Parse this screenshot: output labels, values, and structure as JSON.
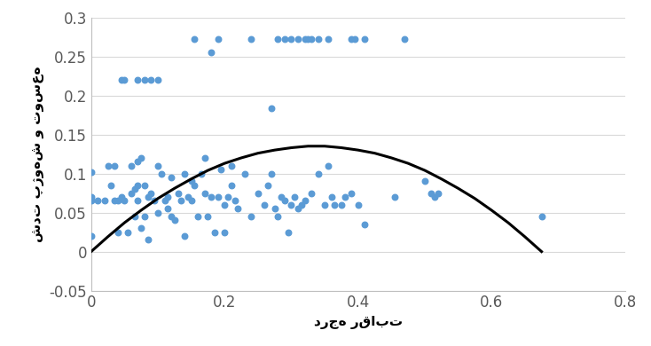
{
  "chart_data": {
    "type": "scatter",
    "x_label": "درجه رقابت",
    "y_label": "شدت پژوهش و توسعه",
    "xlim": [
      0,
      0.8
    ],
    "xticks": [
      0,
      0.2,
      0.4,
      0.6,
      0.8
    ],
    "ylim": [
      -0.05,
      0.3
    ],
    "yticks": [
      -0.05,
      0,
      0.05,
      0.1,
      0.15,
      0.2,
      0.25,
      0.3
    ],
    "grid": true,
    "series": [
      {
        "type": "scatter",
        "color": "#5b9bd5",
        "marker": "circle",
        "x": [
          0.155,
          0.19,
          0.24,
          0.28,
          0.29,
          0.3,
          0.31,
          0.32,
          0.325,
          0.33,
          0.34,
          0.355,
          0.39,
          0.395,
          0.41,
          0.47,
          0.18,
          0.045,
          0.05,
          0.07,
          0.08,
          0.09,
          0.1,
          0.27,
          0,
          0,
          0,
          0,
          0.01,
          0.02,
          0.025,
          0.03,
          0.035,
          0.035,
          0.04,
          0.04,
          0.045,
          0.05,
          0.055,
          0.06,
          0.06,
          0.065,
          0.065,
          0.07,
          0.07,
          0.07,
          0.075,
          0.075,
          0.08,
          0.08,
          0.085,
          0.085,
          0.09,
          0.095,
          0.1,
          0.1,
          0.105,
          0.11,
          0.115,
          0.115,
          0.12,
          0.12,
          0.125,
          0.13,
          0.135,
          0.14,
          0.14,
          0.145,
          0.15,
          0.15,
          0.155,
          0.16,
          0.165,
          0.17,
          0.17,
          0.175,
          0.18,
          0.185,
          0.19,
          0.195,
          0.2,
          0.2,
          0.205,
          0.21,
          0.21,
          0.215,
          0.22,
          0.23,
          0.24,
          0.25,
          0.26,
          0.265,
          0.27,
          0.275,
          0.28,
          0.285,
          0.29,
          0.295,
          0.3,
          0.305,
          0.31,
          0.315,
          0.32,
          0.33,
          0.34,
          0.35,
          0.355,
          0.36,
          0.365,
          0.375,
          0.38,
          0.39,
          0.4,
          0.41,
          0.455,
          0.5,
          0.51,
          0.515,
          0.52,
          0.675
        ],
        "values": [
          0.272,
          0.272,
          0.272,
          0.272,
          0.272,
          0.272,
          0.272,
          0.272,
          0.272,
          0.272,
          0.272,
          0.272,
          0.272,
          0.272,
          0.272,
          0.272,
          0.255,
          0.22,
          0.22,
          0.22,
          0.22,
          0.22,
          0.22,
          0.183,
          0.102,
          0.065,
          0.07,
          0.02,
          0.065,
          0.065,
          0.11,
          0.085,
          0.11,
          0.065,
          0.025,
          0.065,
          0.07,
          0.065,
          0.025,
          0.11,
          0.075,
          0.08,
          0.045,
          0.115,
          0.085,
          0.065,
          0.12,
          0.03,
          0.085,
          0.045,
          0.015,
          0.07,
          0.075,
          0.065,
          0.11,
          0.05,
          0.1,
          0.065,
          0.07,
          0.055,
          0.045,
          0.095,
          0.04,
          0.075,
          0.065,
          0.1,
          0.02,
          0.07,
          0.09,
          0.065,
          0.085,
          0.045,
          0.1,
          0.12,
          0.075,
          0.045,
          0.07,
          0.025,
          0.07,
          0.105,
          0.06,
          0.025,
          0.07,
          0.11,
          0.085,
          0.065,
          0.055,
          0.1,
          0.045,
          0.075,
          0.06,
          0.085,
          0.1,
          0.055,
          0.045,
          0.07,
          0.065,
          0.025,
          0.06,
          0.07,
          0.055,
          0.06,
          0.065,
          0.075,
          0.1,
          0.06,
          0.11,
          0.07,
          0.06,
          0.06,
          0.07,
          0.075,
          0.06,
          0.035,
          0.07,
          0.09,
          0.075,
          0.07,
          0.075,
          0.045
        ]
      },
      {
        "type": "line",
        "color": "#000000",
        "line_style": "solid",
        "x": [
          0,
          0.025,
          0.05,
          0.075,
          0.1,
          0.125,
          0.15,
          0.175,
          0.2,
          0.225,
          0.25,
          0.275,
          0.3,
          0.325,
          0.35,
          0.375,
          0.4,
          0.425,
          0.45,
          0.475,
          0.5,
          0.525,
          0.55,
          0.575,
          0.6,
          0.625,
          0.65,
          0.675
        ],
        "values": [
          0,
          0.019,
          0.037,
          0.053,
          0.068,
          0.081,
          0.093,
          0.104,
          0.113,
          0.12,
          0.126,
          0.13,
          0.133,
          0.135,
          0.135,
          0.133,
          0.13,
          0.126,
          0.12,
          0.113,
          0.104,
          0.093,
          0.081,
          0.068,
          0.053,
          0.037,
          0.019,
          0
        ]
      }
    ]
  }
}
